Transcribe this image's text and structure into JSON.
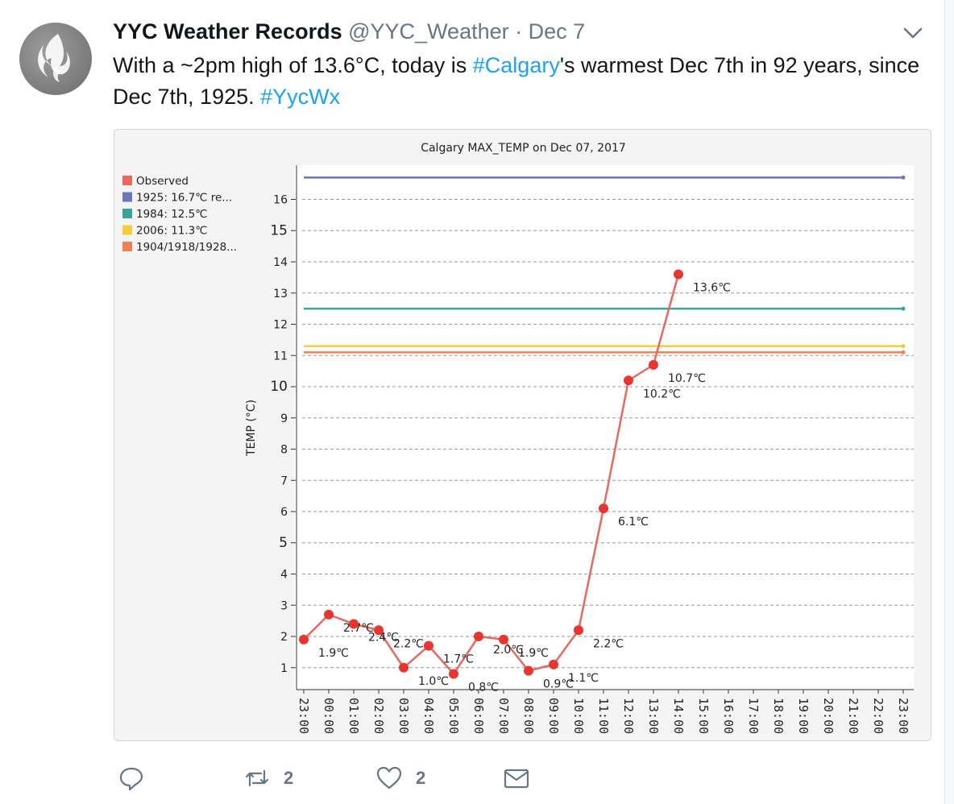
{
  "tweet": {
    "author_name": "YYC Weather Records",
    "handle": "@YYC_Weather",
    "separator": "·",
    "date": "Dec 7",
    "text_parts": [
      {
        "text": "With a ~2pm high of 13.6°C, today is ",
        "hashtag": false
      },
      {
        "text": "#Calgary",
        "hashtag": true
      },
      {
        "text": "'s warmest Dec 7th in 92 years, since Dec 7th, 1925. ",
        "hashtag": false
      },
      {
        "text": "#YycWx",
        "hashtag": true
      }
    ]
  },
  "actions": {
    "reply": {
      "icon": "reply-icon",
      "count": ""
    },
    "retweet": {
      "icon": "retweet-icon",
      "count": "2"
    },
    "like": {
      "icon": "heart-icon",
      "count": "2"
    },
    "message": {
      "icon": "envelope-icon",
      "count": ""
    }
  },
  "colors": {
    "hashtag": "#1da1f2",
    "observed": "#e8685f",
    "point": "#e8352f",
    "r1925": "#6a77bb",
    "r1984": "#36a596",
    "r2006": "#f7cc3c",
    "r1904": "#f07e56"
  },
  "chart_data": {
    "type": "line",
    "title": "Calgary MAX_TEMP on Dec 07, 2017",
    "ylabel": "TEMP (°C)",
    "xlabel": "",
    "ylim": [
      0,
      17
    ],
    "grid": true,
    "legend_position": "top-left",
    "yticks": [
      1,
      2,
      3,
      4,
      5,
      6,
      7,
      8,
      9,
      10,
      11,
      12,
      13,
      14,
      15,
      16
    ],
    "categories": [
      "23:00",
      "00:00",
      "01:00",
      "02:00",
      "03:00",
      "04:00",
      "05:00",
      "06:00",
      "07:00",
      "08:00",
      "09:00",
      "10:00",
      "11:00",
      "12:00",
      "13:00",
      "14:00",
      "15:00",
      "16:00",
      "17:00",
      "18:00",
      "19:00",
      "20:00",
      "21:00",
      "22:00",
      "23:00"
    ],
    "legend": [
      {
        "label": "Observed",
        "color": "#e8685f"
      },
      {
        "label": "1925: 16.7℃ re...",
        "color": "#6a77bb"
      },
      {
        "label": "1984: 12.5℃",
        "color": "#36a596"
      },
      {
        "label": "2006: 11.3℃",
        "color": "#f7cc3c"
      },
      {
        "label": "1904/1918/1928...",
        "color": "#f07e56"
      }
    ],
    "series": [
      {
        "name": "Observed",
        "x": [
          "23:00",
          "00:00",
          "01:00",
          "02:00",
          "03:00",
          "04:00",
          "05:00",
          "06:00",
          "07:00",
          "08:00",
          "09:00",
          "10:00",
          "11:00",
          "12:00",
          "13:00",
          "14:00"
        ],
        "values": [
          1.9,
          2.7,
          2.4,
          2.2,
          1.0,
          1.7,
          0.8,
          2.0,
          1.9,
          0.9,
          1.1,
          2.2,
          6.1,
          10.2,
          10.7,
          13.6
        ],
        "labels": [
          "1.9℃",
          "2.7℃",
          "2.4℃",
          "2.2℃",
          "1.0℃",
          "1.7℃",
          "0.8℃",
          "2.0℃",
          "1.9℃",
          "0.9℃",
          "1.1℃",
          "2.2℃",
          "6.1℃",
          "10.2℃",
          "10.7℃",
          "13.6℃"
        ]
      }
    ],
    "reference_lines": [
      {
        "name": "1925: 16.7℃ re...",
        "value": 16.7
      },
      {
        "name": "1984: 12.5℃",
        "value": 12.5
      },
      {
        "name": "2006: 11.3℃",
        "value": 11.3
      },
      {
        "name": "1904/1918/1928...",
        "value": 11.1
      }
    ]
  }
}
